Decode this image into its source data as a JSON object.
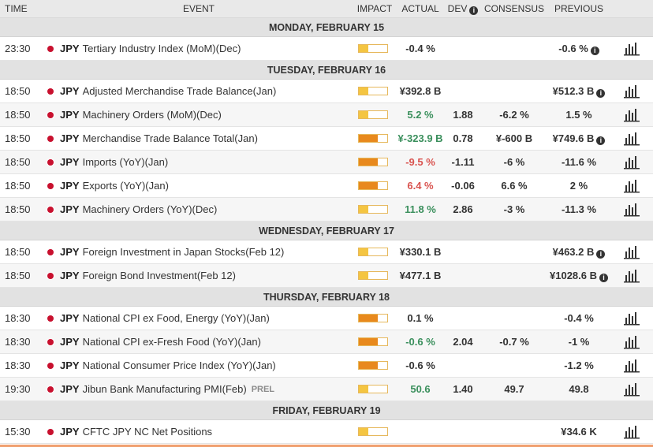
{
  "header": {
    "time": "TIME",
    "event": "EVENT",
    "impact": "IMPACT",
    "actual": "ACTUAL",
    "dev": "DEV",
    "consensus": "CONSENSUS",
    "previous": "PREVIOUS"
  },
  "colors": {
    "low_impact": "#f4c542",
    "medium_impact": "#e8891d",
    "negative": "#d9534f",
    "positive": "#3a8f5c",
    "flag_red": "#c8102e"
  },
  "days": [
    {
      "label": "MONDAY, FEBRUARY 15",
      "events": [
        {
          "time": "23:30",
          "currency": "JPY",
          "name": "Tertiary Industry Index (MoM)(Dec)",
          "prel": "",
          "impact": "low",
          "actual": "-0.4 %",
          "actual_tone": "",
          "dev": "",
          "consensus": "",
          "previous": "-0.6 %",
          "prev_info": true
        }
      ]
    },
    {
      "label": "TUESDAY, FEBRUARY 16",
      "events": [
        {
          "time": "18:50",
          "currency": "JPY",
          "name": "Adjusted Merchandise Trade Balance(Jan)",
          "prel": "",
          "impact": "low",
          "actual": "¥392.8 B",
          "actual_tone": "",
          "dev": "",
          "consensus": "",
          "previous": "¥512.3 B",
          "prev_info": true
        },
        {
          "time": "18:50",
          "currency": "JPY",
          "name": "Machinery Orders (MoM)(Dec)",
          "prel": "",
          "impact": "low",
          "actual": "5.2 %",
          "actual_tone": "pos",
          "dev": "1.88",
          "consensus": "-6.2 %",
          "previous": "1.5 %",
          "prev_info": false
        },
        {
          "time": "18:50",
          "currency": "JPY",
          "name": "Merchandise Trade Balance Total(Jan)",
          "prel": "",
          "impact": "med",
          "actual": "¥-323.9 B",
          "actual_tone": "pos",
          "dev": "0.78",
          "consensus": "¥-600 B",
          "previous": "¥749.6 B",
          "prev_info": true
        },
        {
          "time": "18:50",
          "currency": "JPY",
          "name": "Imports (YoY)(Jan)",
          "prel": "",
          "impact": "med",
          "actual": "-9.5 %",
          "actual_tone": "neg",
          "dev": "-1.11",
          "consensus": "-6 %",
          "previous": "-11.6 %",
          "prev_info": false
        },
        {
          "time": "18:50",
          "currency": "JPY",
          "name": "Exports (YoY)(Jan)",
          "prel": "",
          "impact": "med",
          "actual": "6.4 %",
          "actual_tone": "neg",
          "dev": "-0.06",
          "consensus": "6.6 %",
          "previous": "2 %",
          "prev_info": false
        },
        {
          "time": "18:50",
          "currency": "JPY",
          "name": "Machinery Orders (YoY)(Dec)",
          "prel": "",
          "impact": "low",
          "actual": "11.8 %",
          "actual_tone": "pos",
          "dev": "2.86",
          "consensus": "-3 %",
          "previous": "-11.3 %",
          "prev_info": false
        }
      ]
    },
    {
      "label": "WEDNESDAY, FEBRUARY 17",
      "events": [
        {
          "time": "18:50",
          "currency": "JPY",
          "name": "Foreign Investment in Japan Stocks(Feb 12)",
          "prel": "",
          "impact": "low",
          "actual": "¥330.1 B",
          "actual_tone": "",
          "dev": "",
          "consensus": "",
          "previous": "¥463.2 B",
          "prev_info": true
        },
        {
          "time": "18:50",
          "currency": "JPY",
          "name": "Foreign Bond Investment(Feb 12)",
          "prel": "",
          "impact": "low",
          "actual": "¥477.1 B",
          "actual_tone": "",
          "dev": "",
          "consensus": "",
          "previous": "¥1028.6 B",
          "prev_info": true
        }
      ]
    },
    {
      "label": "THURSDAY, FEBRUARY 18",
      "events": [
        {
          "time": "18:30",
          "currency": "JPY",
          "name": "National CPI ex Food, Energy (YoY)(Jan)",
          "prel": "",
          "impact": "med",
          "actual": "0.1 %",
          "actual_tone": "",
          "dev": "",
          "consensus": "",
          "previous": "-0.4 %",
          "prev_info": false
        },
        {
          "time": "18:30",
          "currency": "JPY",
          "name": "National CPI ex-Fresh Food (YoY)(Jan)",
          "prel": "",
          "impact": "med",
          "actual": "-0.6 %",
          "actual_tone": "pos",
          "dev": "2.04",
          "consensus": "-0.7 %",
          "previous": "-1 %",
          "prev_info": false
        },
        {
          "time": "18:30",
          "currency": "JPY",
          "name": "National Consumer Price Index (YoY)(Jan)",
          "prel": "",
          "impact": "med",
          "actual": "-0.6 %",
          "actual_tone": "",
          "dev": "",
          "consensus": "",
          "previous": "-1.2 %",
          "prev_info": false
        },
        {
          "time": "19:30",
          "currency": "JPY",
          "name": "Jibun Bank Manufacturing PMI(Feb)",
          "prel": "PREL",
          "impact": "low",
          "actual": "50.6",
          "actual_tone": "pos",
          "dev": "1.40",
          "consensus": "49.7",
          "previous": "49.8",
          "prev_info": false
        }
      ]
    },
    {
      "label": "FRIDAY, FEBRUARY 19",
      "events": [
        {
          "time": "15:30",
          "currency": "JPY",
          "name": "CFTC JPY NC Net Positions",
          "prel": "",
          "impact": "low",
          "actual": "",
          "actual_tone": "",
          "dev": "",
          "consensus": "",
          "previous": "¥34.6 K",
          "prev_info": false
        }
      ]
    }
  ]
}
